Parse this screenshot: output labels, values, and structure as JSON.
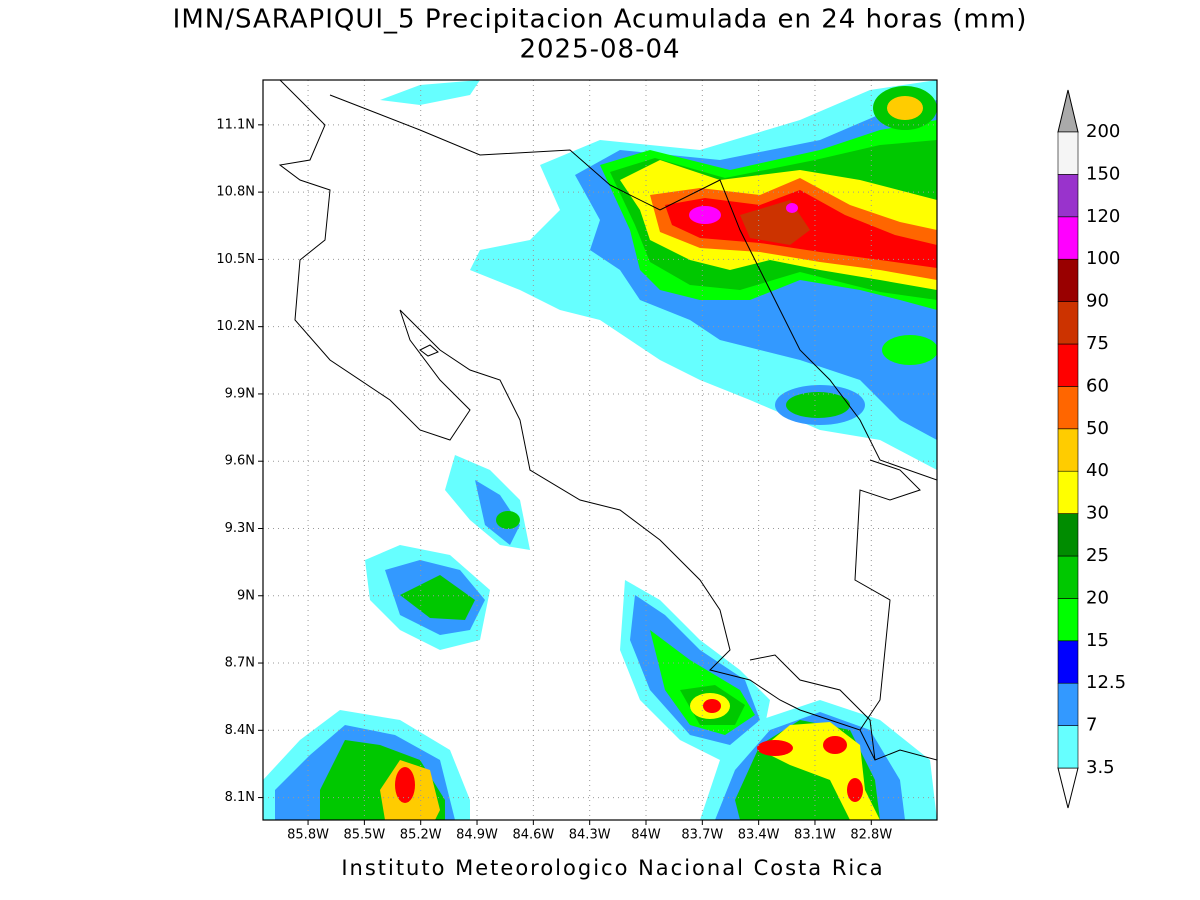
{
  "title": "IMN/SARAPIQUI_5 Precipitacion Acumulada en 24 horas (mm)",
  "subtitle": "2025-08-04",
  "footer": "Instituto Meteorologico Nacional Costa Rica",
  "map": {
    "xlim": [
      -86.04,
      -82.45
    ],
    "ylim": [
      8.0,
      11.3
    ],
    "xticks": [
      {
        "value": -85.8,
        "label": "85.8W"
      },
      {
        "value": -85.5,
        "label": "85.5W"
      },
      {
        "value": -85.2,
        "label": "85.2W"
      },
      {
        "value": -84.9,
        "label": "84.9W"
      },
      {
        "value": -84.6,
        "label": "84.6W"
      },
      {
        "value": -84.3,
        "label": "84.3W"
      },
      {
        "value": -84.0,
        "label": "84W"
      },
      {
        "value": -83.7,
        "label": "83.7W"
      },
      {
        "value": -83.4,
        "label": "83.4W"
      },
      {
        "value": -83.1,
        "label": "83.1W"
      },
      {
        "value": -82.8,
        "label": "82.8W"
      }
    ],
    "yticks": [
      {
        "value": 8.1,
        "label": "8.1N"
      },
      {
        "value": 8.4,
        "label": "8.4N"
      },
      {
        "value": 8.7,
        "label": "8.7N"
      },
      {
        "value": 9.0,
        "label": "9N"
      },
      {
        "value": 9.3,
        "label": "9.3N"
      },
      {
        "value": 9.6,
        "label": "9.6N"
      },
      {
        "value": 9.9,
        "label": "9.9N"
      },
      {
        "value": 10.2,
        "label": "10.2N"
      },
      {
        "value": 10.5,
        "label": "10.5N"
      },
      {
        "value": 10.8,
        "label": "10.8N"
      },
      {
        "value": 11.1,
        "label": "11.1N"
      }
    ],
    "grid": true
  },
  "colorbar": {
    "levels": [
      3.5,
      7,
      12.5,
      15,
      20,
      25,
      30,
      40,
      50,
      60,
      75,
      90,
      100,
      120,
      150,
      200
    ],
    "colors": [
      "#66ffff",
      "#3399ff",
      "#0000ff",
      "#00ff00",
      "#00c800",
      "#008c00",
      "#ffff00",
      "#ffcc00",
      "#ff6600",
      "#ff0000",
      "#cc3300",
      "#990000",
      "#ff00ff",
      "#9933cc",
      "#f5f5f5"
    ],
    "under_color": "#ffffff",
    "over_color": "#aaaaaa"
  }
}
